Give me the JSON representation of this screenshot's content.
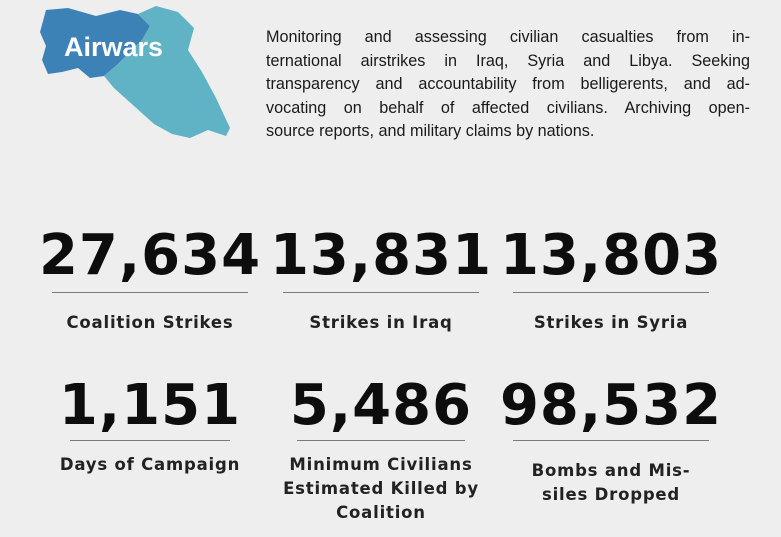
{
  "logo": {
    "text": "Airwars",
    "colors": {
      "iraq": "#5fb3c4",
      "syria": "#3c82b6",
      "text": "#ffffff"
    }
  },
  "intro": {
    "lines": [
      "Monitoring and assessing civilian casualties from in-",
      "ternational airstrikes in Iraq, Syria and Libya. Seeking",
      "transparency and accountability from belligerents, and ad-",
      "vocating on behalf of affected civilians. Archiving open-",
      "source reports, and military claims by nations."
    ]
  },
  "stats": [
    {
      "value": "27,634",
      "label_lines": [
        "Coalition Strikes"
      ]
    },
    {
      "value": "13,831",
      "label_lines": [
        "Strikes in Iraq"
      ]
    },
    {
      "value": "13,803",
      "label_lines": [
        "Strikes in Syria"
      ]
    },
    {
      "value": "1,151",
      "label_lines": [
        "Days of Campaign"
      ]
    },
    {
      "value": "5,486",
      "label_lines": [
        "Minimum Civilians",
        "Estimated Killed by",
        "Coalition"
      ]
    },
    {
      "value": "98,532",
      "label_lines": [
        "Bombs and Mis-",
        "siles Dropped"
      ]
    }
  ]
}
